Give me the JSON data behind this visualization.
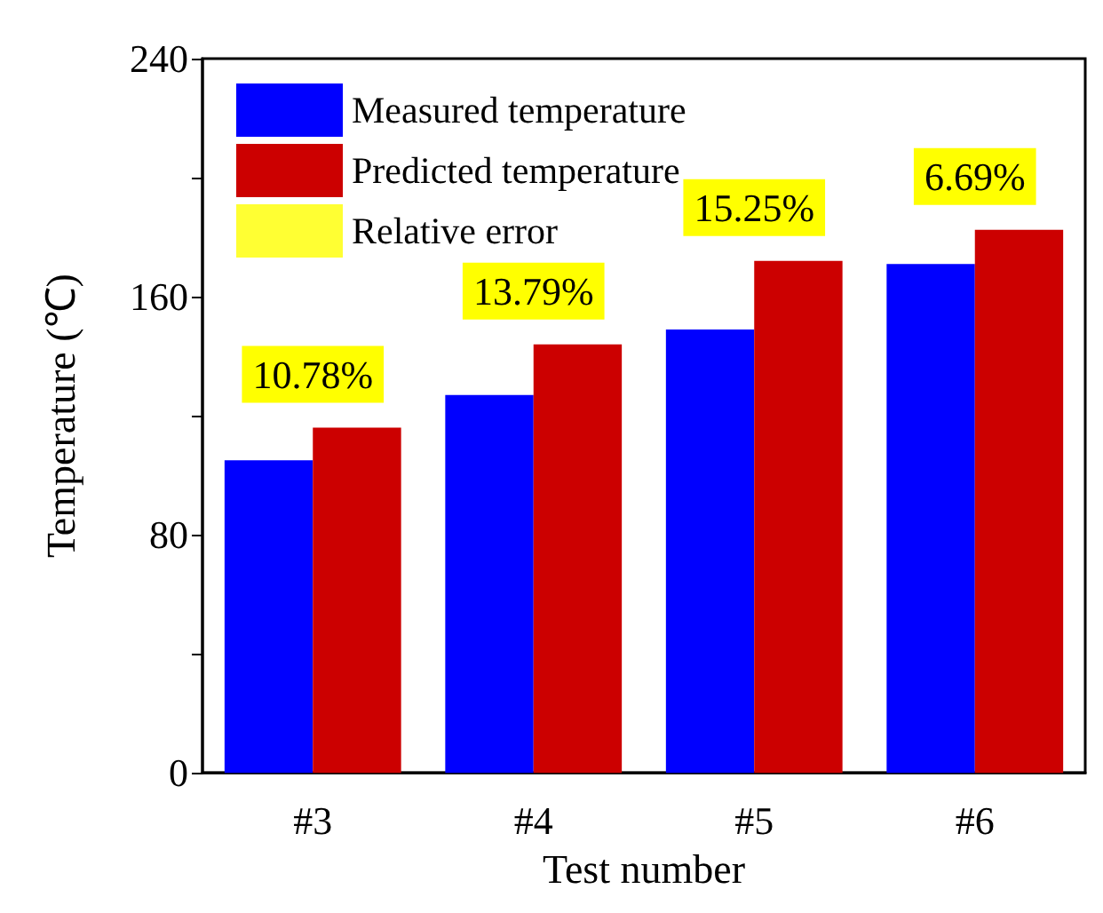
{
  "chart_data": {
    "type": "bar",
    "xlabel": "Test number",
    "ylabel": "Temperature (℃)",
    "categories": [
      "#3",
      "#4",
      "#5",
      "#6"
    ],
    "series": [
      {
        "name": "Measured temperature",
        "color": "#0000ff",
        "values": [
          105,
          127,
          149,
          171
        ]
      },
      {
        "name": "Predicted temperature",
        "color": "#cc0000",
        "values": [
          116,
          144,
          172,
          182.5
        ]
      },
      {
        "name": "Relative error",
        "type": "scatter",
        "color": "#ffff00",
        "values": [
          null,
          null,
          null,
          null
        ]
      }
    ],
    "ylim": [
      0,
      240
    ],
    "yticks": [
      0,
      {
        "value": 40,
        "label": null
      },
      80,
      {
        "value": 120,
        "label": null
      },
      160,
      {
        "value": 200,
        "label": null
      },
      240
    ],
    "annotations": [
      "10.78%",
      "13.79%",
      "15.25%",
      "6.69%"
    ],
    "legend": "top left",
    "grid": false
  }
}
